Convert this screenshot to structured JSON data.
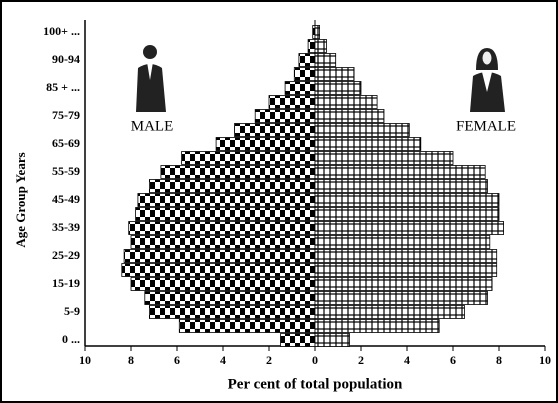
{
  "chart_data": {
    "type": "population_pyramid",
    "x_label": "Per cent of total population",
    "y_label": "Age Group Years",
    "annotations": [
      "MALE",
      "FEMALE"
    ],
    "categories": [
      "0 ...",
      null,
      "5-9",
      null,
      "15-19",
      null,
      "25-29",
      null,
      "35-39",
      null,
      "45-49",
      null,
      "55-59",
      null,
      "65-69",
      null,
      "75-79",
      null,
      "85 + ...",
      null,
      "90-94",
      null,
      "100+ ..."
    ],
    "series": [
      {
        "name": "MALE",
        "color": "#000000",
        "values": [
          1.5,
          5.9,
          7.2,
          7.4,
          8.0,
          8.4,
          8.3,
          8.0,
          8.1,
          7.8,
          7.7,
          7.2,
          6.7,
          5.8,
          4.3,
          3.5,
          2.6,
          2.0,
          1.3,
          0.9,
          0.7,
          0.3,
          0.1
        ]
      },
      {
        "name": "FEMALE",
        "color": "#000000",
        "values": [
          1.5,
          5.4,
          6.5,
          7.5,
          7.7,
          7.9,
          7.9,
          7.6,
          8.2,
          8.0,
          8.0,
          7.5,
          7.4,
          6.0,
          4.6,
          4.1,
          3.0,
          2.7,
          2.0,
          1.7,
          0.9,
          0.5,
          0.2
        ]
      }
    ],
    "xlim": [
      -10,
      10
    ],
    "xticks": [
      {
        "value": -10,
        "label": "10"
      },
      {
        "value": -8,
        "label": "8"
      },
      {
        "value": -6,
        "label": "6"
      },
      {
        "value": -4,
        "label": "4"
      },
      {
        "value": -2,
        "label": "2"
      },
      0,
      2,
      4,
      6,
      8,
      10
    ]
  }
}
